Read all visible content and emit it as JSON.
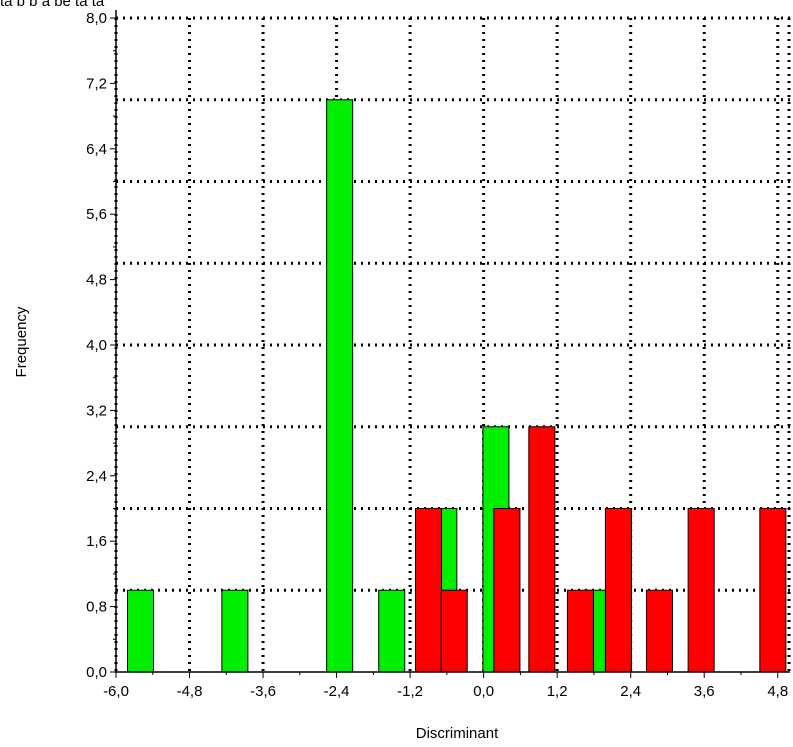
{
  "chart_data": {
    "type": "bar",
    "title": "",
    "top_text_fragment": "ta b b a be  ta ta",
    "xlabel": "Discriminant",
    "ylabel": "Frequency",
    "xlim": [
      -6.0,
      5.0
    ],
    "ylim": [
      0.0,
      8.0
    ],
    "bin_width": 0.425,
    "x_ticks": [
      -6.0,
      -4.8,
      -3.6,
      -2.4,
      -1.2,
      0.0,
      1.2,
      2.4,
      3.6,
      4.8
    ],
    "x_tick_labels": [
      "-6,0",
      "-4,8",
      "-3,6",
      "-2,4",
      "-1,2",
      "0,0",
      "1,2",
      "2,4",
      "3,6",
      "4,8"
    ],
    "y_ticks": [
      0.0,
      0.8,
      1.6,
      2.4,
      3.2,
      4.0,
      4.8,
      5.6,
      6.4,
      7.2,
      8.0
    ],
    "y_tick_labels": [
      "0,0",
      "0,8",
      "1,6",
      "2,4",
      "3,2",
      "4,0",
      "4,8",
      "5,6",
      "6,4",
      "7,2",
      "8,0"
    ],
    "grid": true,
    "grid_style": "dotted",
    "gridlines_y": [
      1,
      2,
      3,
      4,
      5,
      6,
      7,
      8
    ],
    "series": [
      {
        "color": "#00ee00",
        "points": [
          {
            "x": -5.6,
            "y": 1
          },
          {
            "x": -4.06,
            "y": 1
          },
          {
            "x": -2.35,
            "y": 7
          },
          {
            "x": -1.5,
            "y": 1
          },
          {
            "x": -0.65,
            "y": 2
          },
          {
            "x": 0.2,
            "y": 3
          },
          {
            "x": 1.86,
            "y": 1
          }
        ]
      },
      {
        "color": "#ff0000",
        "points": [
          {
            "x": -0.9,
            "y": 2
          },
          {
            "x": -0.48,
            "y": 1
          },
          {
            "x": 0.38,
            "y": 2
          },
          {
            "x": 0.95,
            "y": 3
          },
          {
            "x": 1.58,
            "y": 1
          },
          {
            "x": 2.2,
            "y": 2
          },
          {
            "x": 2.87,
            "y": 1
          },
          {
            "x": 3.55,
            "y": 2
          },
          {
            "x": 4.72,
            "y": 2
          }
        ]
      }
    ]
  }
}
